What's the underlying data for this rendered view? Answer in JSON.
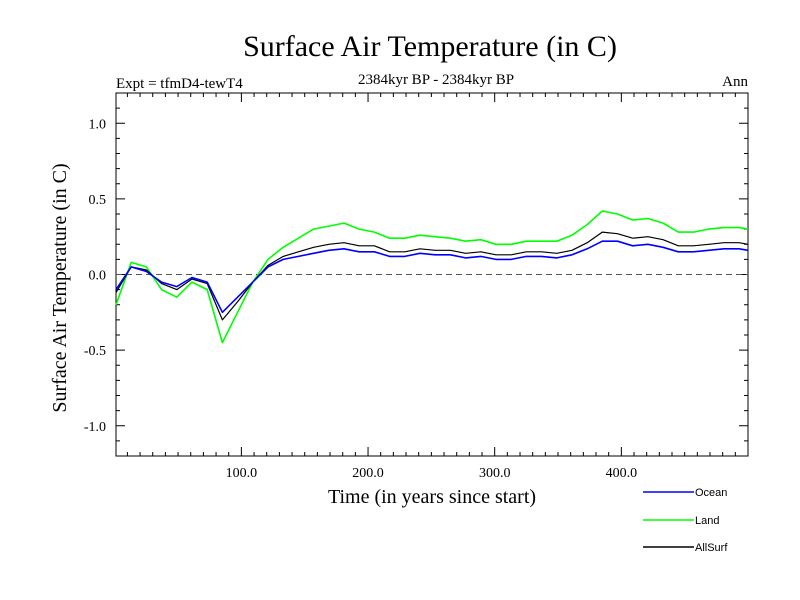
{
  "chart_data": {
    "type": "line",
    "title": "Surface Air Temperature (in C)",
    "subtitle": "2384kyr BP - 2384kyr BP",
    "experiment_label": "Expt = tfmD4-tewT4",
    "period_label": "Ann",
    "xlabel": "Time (in years since start)",
    "ylabel": "Surface Air Temperature (in C)",
    "xlim": [
      1,
      500
    ],
    "ylim": [
      -1.2,
      1.2
    ],
    "x_ticks": [
      100,
      200,
      300,
      400
    ],
    "x_tick_labels": [
      "100.0",
      "200.0",
      "300.0",
      "400.0"
    ],
    "y_ticks": [
      1.0,
      0.5,
      0.0,
      -0.5,
      -1.0
    ],
    "y_tick_labels": [
      "1.0",
      "0.5",
      "0.0",
      "-0.5",
      "-1.0"
    ],
    "reference_line": 0.0,
    "legend_position": "bottom-right",
    "series": [
      {
        "name": "Ocean",
        "color": "#0000ff",
        "x": [
          1,
          13,
          25,
          37,
          49,
          61,
          73,
          85,
          97,
          109,
          121,
          133,
          145,
          157,
          169,
          181,
          193,
          205,
          217,
          229,
          241,
          253,
          265,
          277,
          289,
          301,
          313,
          325,
          337,
          349,
          361,
          373,
          385,
          397,
          409,
          421,
          433,
          445,
          457,
          469,
          481,
          493,
          500
        ],
        "values": [
          -0.1,
          0.05,
          0.02,
          -0.05,
          -0.08,
          -0.02,
          -0.05,
          -0.25,
          -0.15,
          -0.05,
          0.05,
          0.1,
          0.12,
          0.14,
          0.16,
          0.17,
          0.15,
          0.15,
          0.12,
          0.12,
          0.14,
          0.13,
          0.13,
          0.11,
          0.12,
          0.1,
          0.1,
          0.12,
          0.12,
          0.11,
          0.13,
          0.17,
          0.22,
          0.22,
          0.19,
          0.2,
          0.18,
          0.15,
          0.15,
          0.16,
          0.17,
          0.17,
          0.16
        ]
      },
      {
        "name": "Land",
        "color": "#00ff00",
        "x": [
          1,
          13,
          25,
          37,
          49,
          61,
          73,
          85,
          97,
          109,
          121,
          133,
          145,
          157,
          169,
          181,
          193,
          205,
          217,
          229,
          241,
          253,
          265,
          277,
          289,
          301,
          313,
          325,
          337,
          349,
          361,
          373,
          385,
          397,
          409,
          421,
          433,
          445,
          457,
          469,
          481,
          493,
          500
        ],
        "values": [
          -0.2,
          0.08,
          0.05,
          -0.1,
          -0.15,
          -0.05,
          -0.1,
          -0.45,
          -0.25,
          -0.05,
          0.1,
          0.18,
          0.24,
          0.3,
          0.32,
          0.34,
          0.3,
          0.28,
          0.24,
          0.24,
          0.26,
          0.25,
          0.24,
          0.22,
          0.23,
          0.2,
          0.2,
          0.22,
          0.22,
          0.22,
          0.26,
          0.33,
          0.42,
          0.4,
          0.36,
          0.37,
          0.34,
          0.28,
          0.28,
          0.3,
          0.31,
          0.31,
          0.3
        ]
      },
      {
        "name": "AllSurf",
        "color": "#000000",
        "x": [
          1,
          13,
          25,
          37,
          49,
          61,
          73,
          85,
          97,
          109,
          121,
          133,
          145,
          157,
          169,
          181,
          193,
          205,
          217,
          229,
          241,
          253,
          265,
          277,
          289,
          301,
          313,
          325,
          337,
          349,
          361,
          373,
          385,
          397,
          409,
          421,
          433,
          445,
          457,
          469,
          481,
          493,
          500
        ],
        "values": [
          -0.12,
          0.05,
          0.03,
          -0.06,
          -0.1,
          -0.03,
          -0.06,
          -0.3,
          -0.18,
          -0.05,
          0.06,
          0.12,
          0.15,
          0.18,
          0.2,
          0.21,
          0.19,
          0.19,
          0.15,
          0.15,
          0.17,
          0.16,
          0.16,
          0.14,
          0.15,
          0.13,
          0.13,
          0.15,
          0.15,
          0.14,
          0.16,
          0.21,
          0.28,
          0.27,
          0.24,
          0.25,
          0.23,
          0.19,
          0.19,
          0.2,
          0.21,
          0.21,
          0.2
        ]
      }
    ]
  }
}
